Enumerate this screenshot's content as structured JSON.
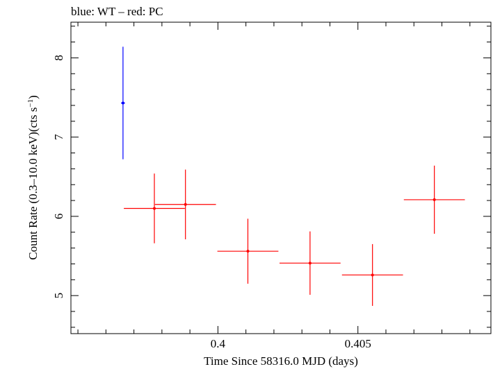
{
  "chart_data": {
    "type": "scatter",
    "title": "blue: WT – red: PC",
    "xlabel": "Time Since 58316.0 MJD (days)",
    "ylabel_prefix": "Count Rate (0.3–10.0 keV)(cts s",
    "ylabel_sup": "−1",
    "ylabel_suffix": ")",
    "xlim": [
      0.39475,
      0.40975
    ],
    "ylim": [
      4.52,
      8.45
    ],
    "x_ticks": [
      0.4,
      0.405
    ],
    "x_tick_labels": [
      "0.4",
      "0.405"
    ],
    "y_ticks": [
      5,
      6,
      7,
      8
    ],
    "y_tick_labels": [
      "5",
      "6",
      "7",
      "8"
    ],
    "grid": false,
    "series": [
      {
        "name": "WT",
        "color": "#0000ff",
        "points": [
          {
            "x": 0.39661,
            "xerr": 7e-05,
            "y": 7.43,
            "yerr": 0.71
          }
        ]
      },
      {
        "name": "PC",
        "color": "#ff0000",
        "points": [
          {
            "x": 0.39773,
            "xerr": 0.00109,
            "y": 6.1,
            "yerr": 0.44
          },
          {
            "x": 0.39884,
            "xerr": 0.00109,
            "y": 6.15,
            "yerr": 0.44
          },
          {
            "x": 0.40107,
            "xerr": 0.00109,
            "y": 5.56,
            "yerr": 0.41
          },
          {
            "x": 0.40329,
            "xerr": 0.00109,
            "y": 5.41,
            "yerr": 0.4
          },
          {
            "x": 0.40552,
            "xerr": 0.00109,
            "y": 5.26,
            "yerr": 0.39
          },
          {
            "x": 0.40773,
            "xerr": 0.00109,
            "y": 6.21,
            "yerr": 0.43
          }
        ]
      }
    ]
  }
}
